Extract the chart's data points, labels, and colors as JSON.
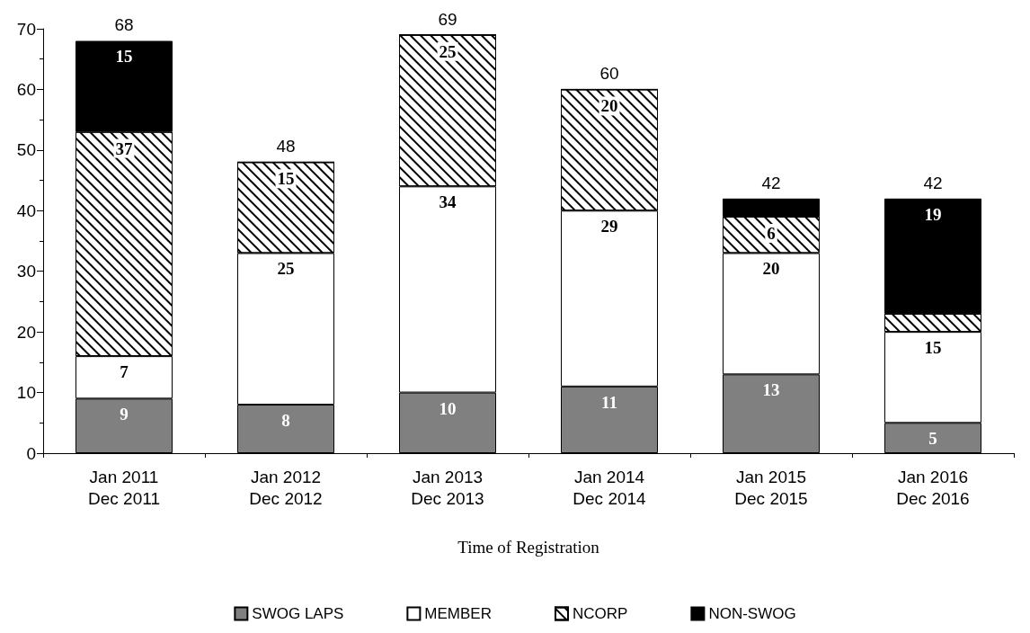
{
  "chart_data": {
    "type": "bar",
    "stacked": true,
    "xlabel": "Time of Registration",
    "categories": [
      "Jan 2011\nDec 2011",
      "Jan 2012\nDec 2012",
      "Jan 2013\nDec 2013",
      "Jan 2014\nDec 2014",
      "Jan 2015\nDec 2015",
      "Jan 2016\nDec 2016"
    ],
    "series": [
      {
        "name": "SWOG LAPS",
        "color": "#808080",
        "values": [
          9,
          8,
          10,
          11,
          13,
          5
        ],
        "value_labels": [
          "9",
          "8",
          "10",
          "11",
          "13",
          "5"
        ]
      },
      {
        "name": "MEMBER",
        "color": "#ffffff",
        "values": [
          7,
          25,
          34,
          29,
          20,
          15
        ],
        "value_labels": [
          "7",
          "25",
          "34",
          "29",
          "20",
          "15"
        ]
      },
      {
        "name": "NCORP",
        "color": "#ffffff",
        "values": [
          37,
          15,
          25,
          20,
          6,
          3
        ],
        "value_labels": [
          "37",
          "15",
          "25",
          "20",
          "6",
          null
        ]
      },
      {
        "name": "NON-SWOG",
        "color": "#000000",
        "values": [
          15,
          0,
          0,
          0,
          3,
          19
        ],
        "value_labels": [
          "15",
          null,
          null,
          null,
          null,
          "19"
        ]
      }
    ],
    "totals": [
      "68",
      "48",
      "69",
      "60",
      "42",
      "42"
    ],
    "ylim": [
      0,
      70
    ],
    "yticks": [
      0,
      10,
      20,
      30,
      40,
      50,
      60,
      70
    ],
    "grid": false,
    "legend": "bottom"
  }
}
